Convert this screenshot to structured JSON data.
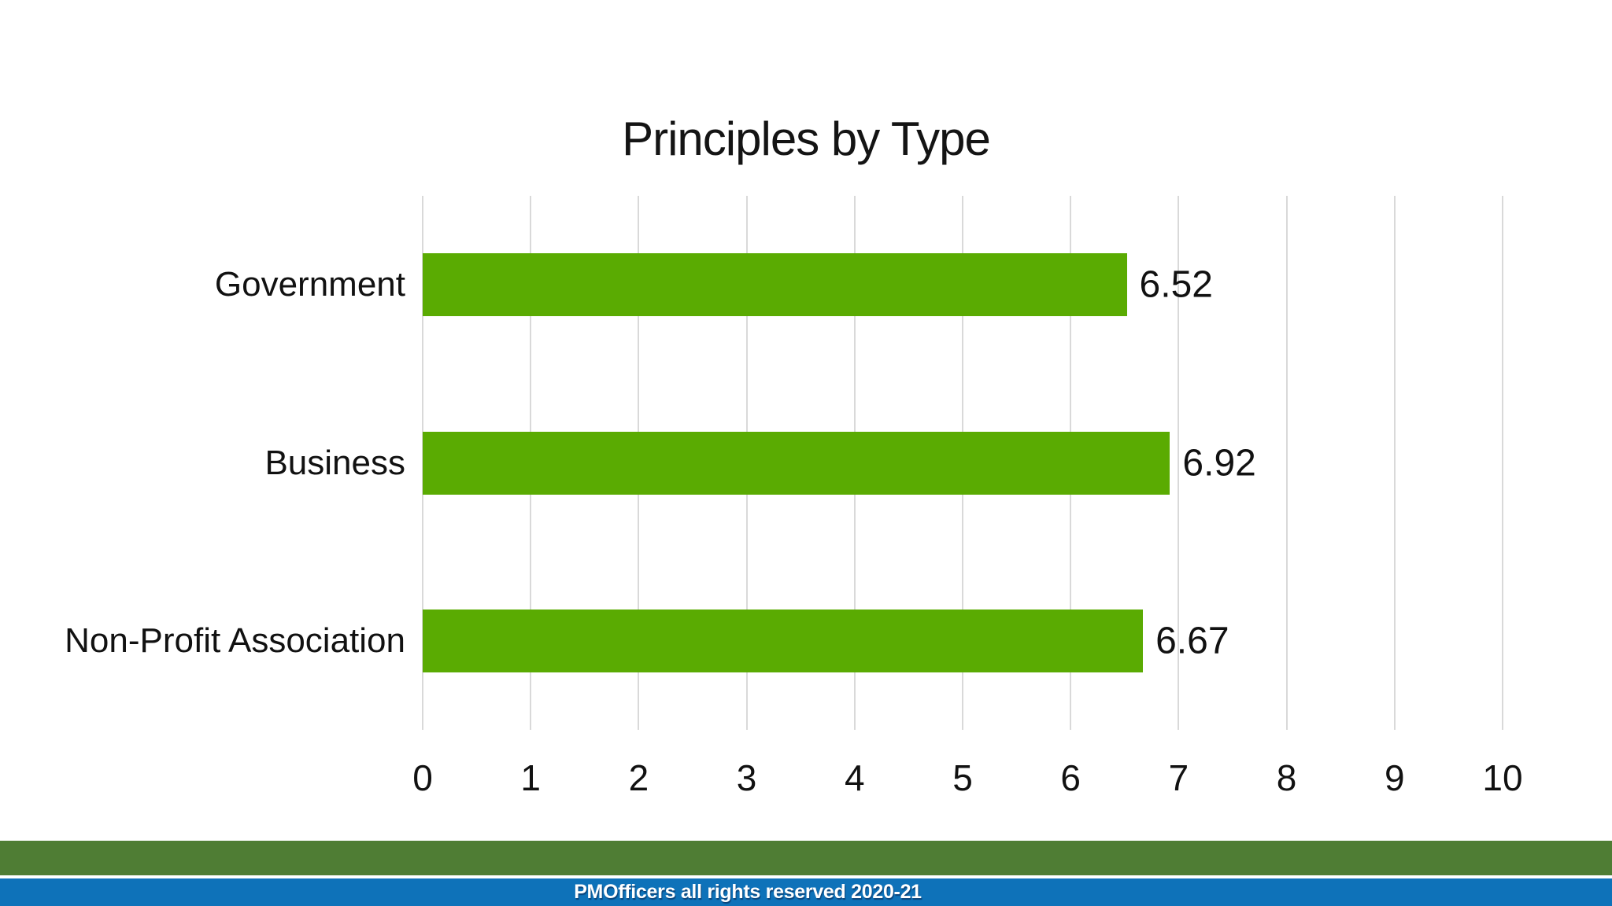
{
  "page": {
    "background_color": "#ffffff"
  },
  "chart_data": {
    "type": "bar",
    "orientation": "horizontal",
    "title": "Principles by Type",
    "categories": [
      "Government",
      "Business",
      "Non-Profit Association"
    ],
    "values": [
      6.52,
      6.92,
      6.67
    ],
    "value_labels": [
      "6.52",
      "6.92",
      "6.67"
    ],
    "xlabel": "",
    "ylabel": "",
    "xlim": [
      0,
      10
    ],
    "x_ticks": [
      0,
      1,
      2,
      3,
      4,
      5,
      6,
      7,
      8,
      9,
      10
    ],
    "grid": "vertical-only",
    "legend_position": "none",
    "bar_color": "#5aab02",
    "gridline_color": "#d9d9d9",
    "label_color": "#111111"
  },
  "footer": {
    "copyright": "PMOfficers all rights reserved 2020-21",
    "green_band_color": "#4f7d34",
    "blue_band_color": "#0e72b9",
    "text_color": "#ffffff"
  }
}
